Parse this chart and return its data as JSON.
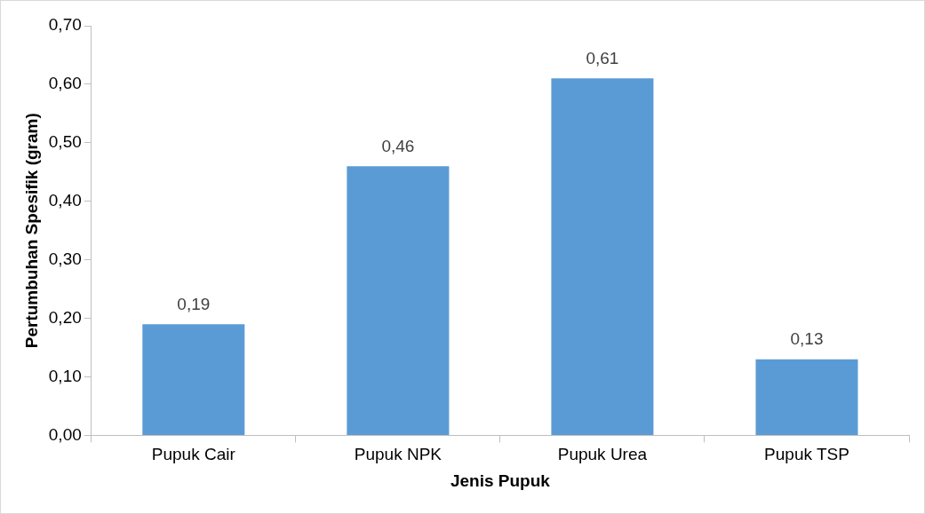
{
  "chart_data": {
    "type": "bar",
    "xlabel": "Jenis Pupuk",
    "ylabel": "Pertumbuhan Spesifik (gram)",
    "categories": [
      "Pupuk Cair",
      "Pupuk NPK",
      "Pupuk Urea",
      "Pupuk TSP"
    ],
    "values": [
      0.19,
      0.46,
      0.61,
      0.13
    ],
    "value_labels": [
      "0,19",
      "0,46",
      "0,61",
      "0,13"
    ],
    "color": "#5b9bd5",
    "ylim": [
      0,
      0.7
    ],
    "yticks": [
      {
        "value": 0,
        "label": "0,00"
      },
      {
        "value": 0.1,
        "label": "0,10"
      },
      {
        "value": 0.2,
        "label": "0,20"
      },
      {
        "value": 0.3,
        "label": "0,30"
      },
      {
        "value": 0.4,
        "label": "0,40"
      },
      {
        "value": 0.5,
        "label": "0,50"
      },
      {
        "value": 0.6,
        "label": "0,60"
      },
      {
        "value": 0.7,
        "label": "0,70"
      }
    ],
    "grid": false,
    "legend": false
  }
}
